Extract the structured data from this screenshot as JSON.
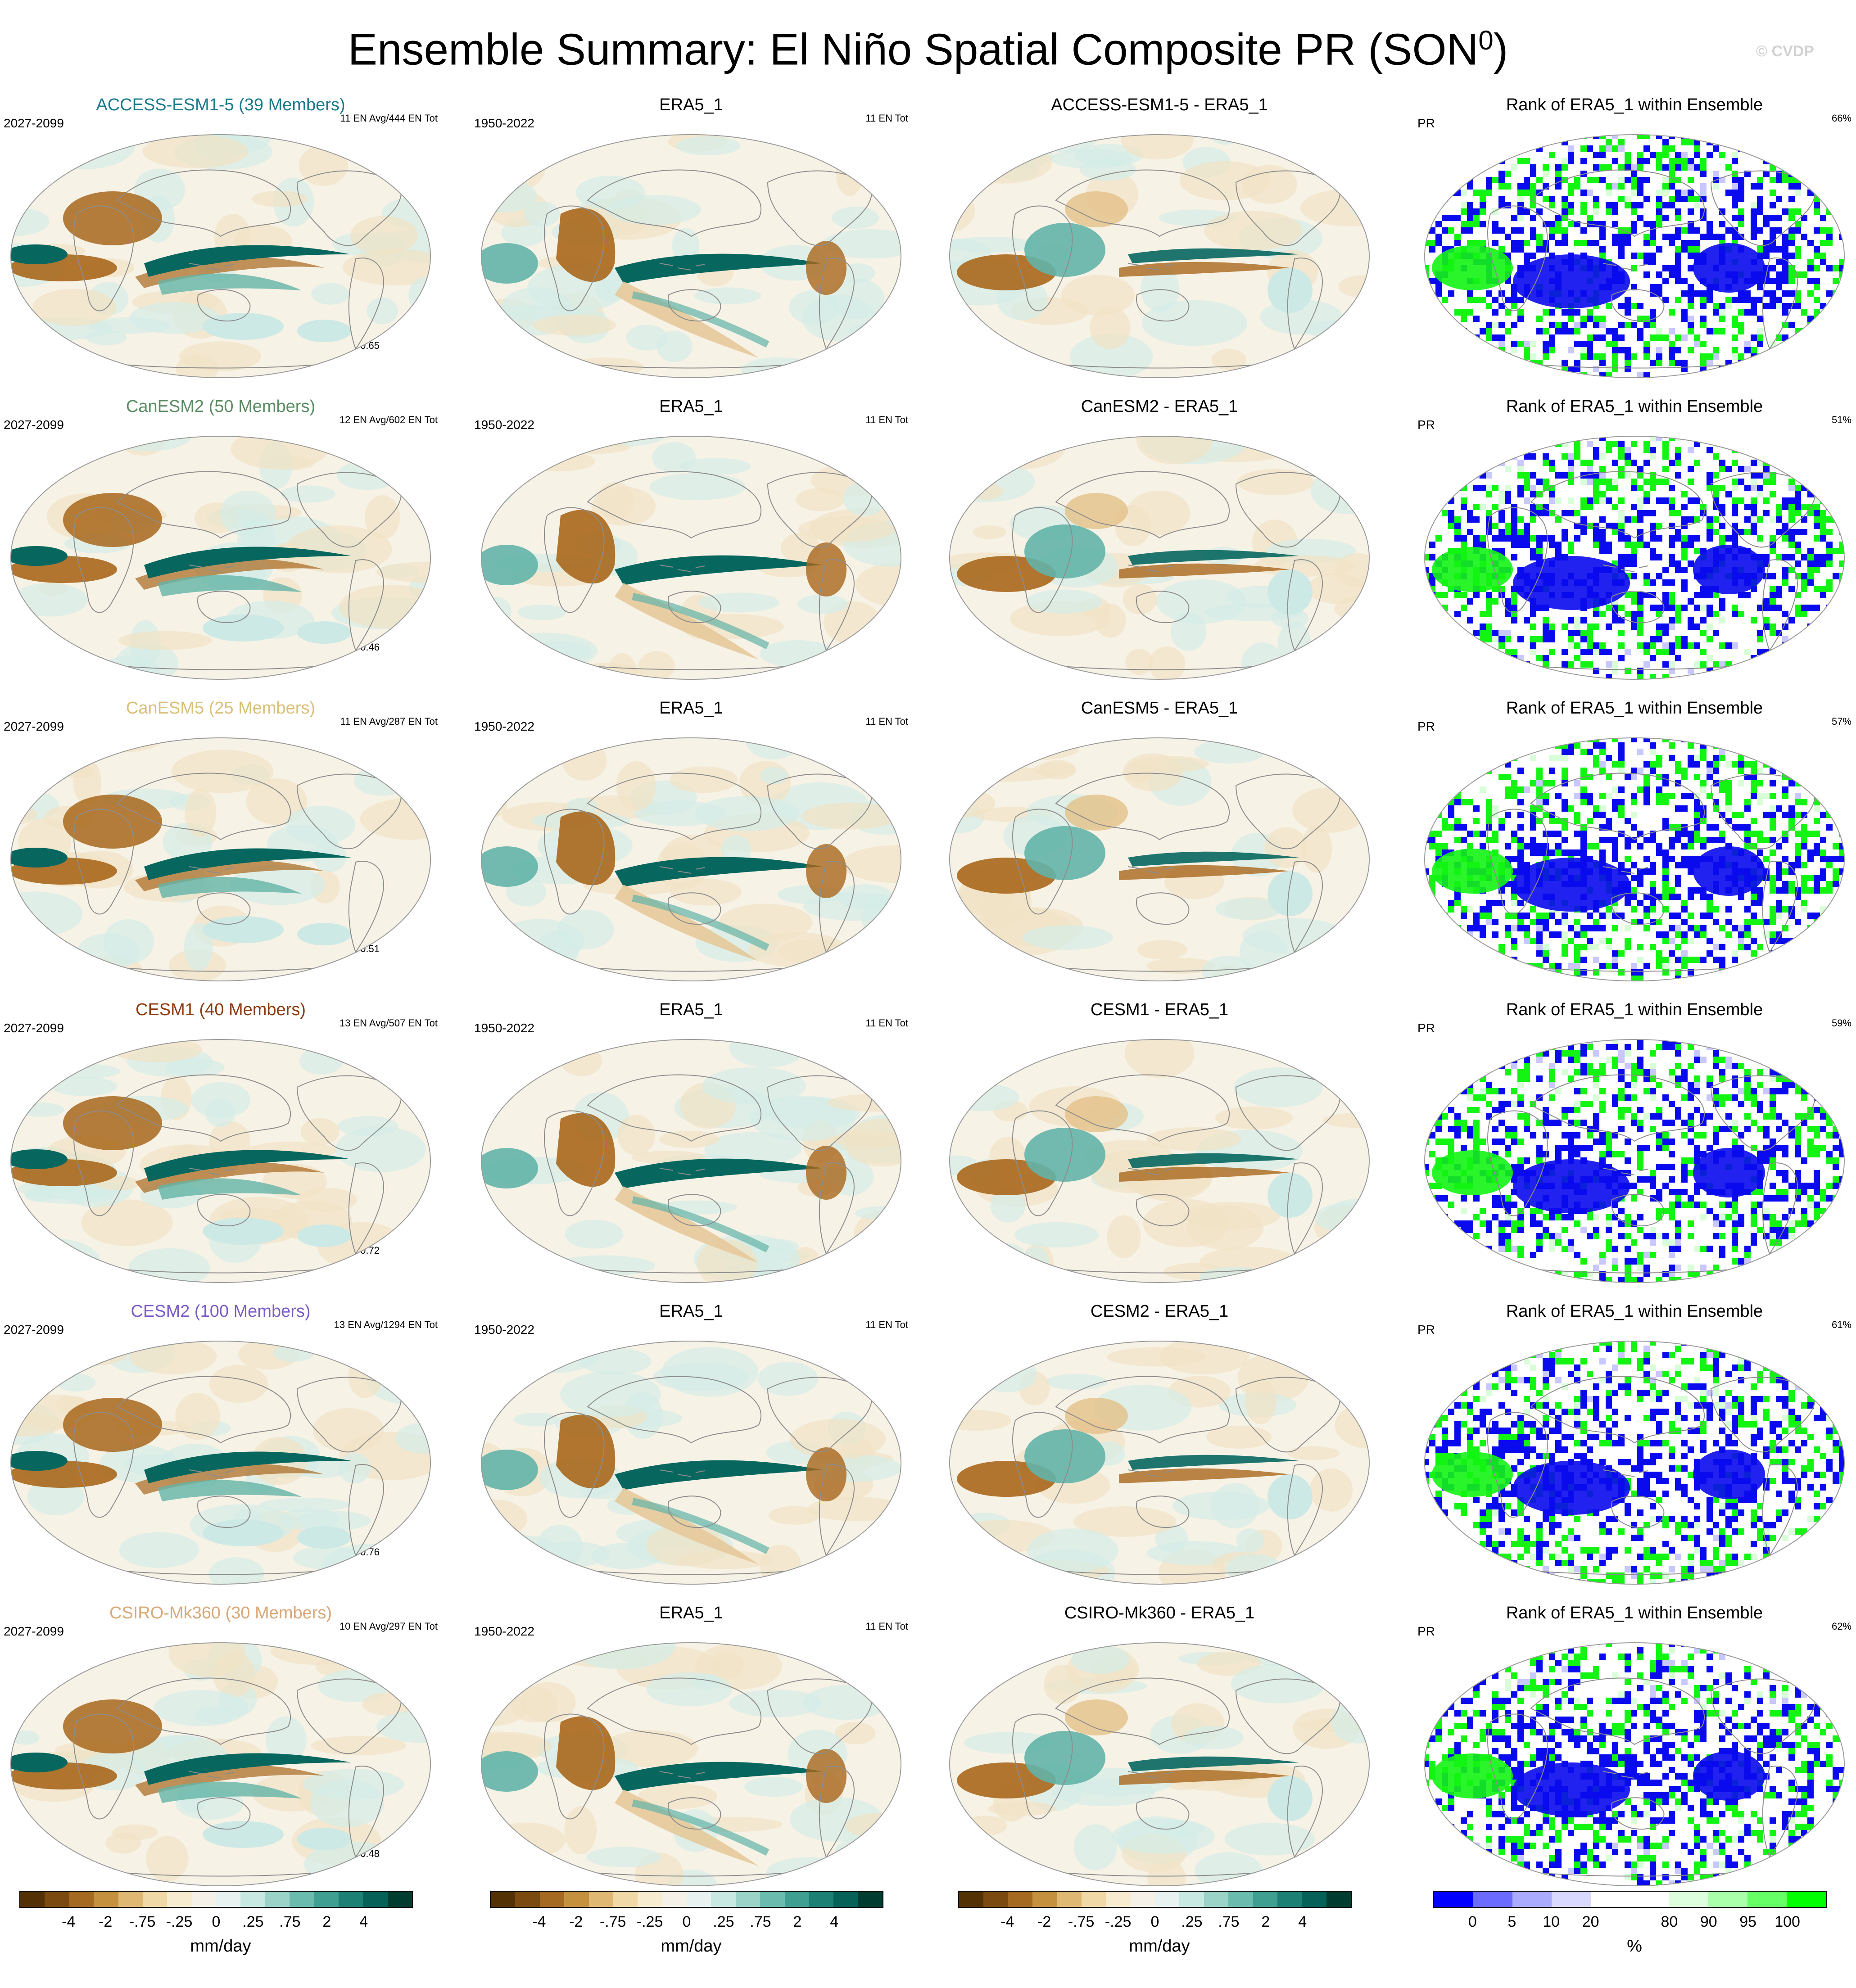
{
  "title": "Ensemble Summary: El Niño Spatial Composite PR (SON",
  "title_sup": "0",
  "title_close": ")",
  "watermark": "© CVDP",
  "colors": {
    "brown_dark": "#6b3c0b",
    "brown": "#a8671c",
    "tan": "#e3c187",
    "cream": "#f7f0df",
    "white": "#ffffff",
    "teal_light": "#cde9e5",
    "teal": "#63b4a8",
    "teal_dark": "#07675f",
    "rank_blue": "#0a0aee",
    "rank_green": "#13f413",
    "coast": "#8c8c8c"
  },
  "rows": [
    {
      "model": {
        "title": "ACCESS-ESM1-5 (39 Members)",
        "title_color": "#1a7a8c",
        "years": "2027-2099",
        "tag": "11 EN Avg/444 EN Tot",
        "corr": "r=0.65"
      },
      "obs": {
        "title": "ERA5_1",
        "years": "1950-2022",
        "tag": "11 EN Tot"
      },
      "diff": {
        "title": "ACCESS-ESM1-5 - ERA5_1"
      },
      "rank": {
        "title": "Rank of ERA5_1 within Ensemble",
        "var": "PR",
        "pct": "66%"
      }
    },
    {
      "model": {
        "title": "CanESM2 (50 Members)",
        "title_color": "#5a8c63",
        "years": "2027-2099",
        "tag": "12 EN Avg/602 EN Tot",
        "corr": "r=0.46"
      },
      "obs": {
        "title": "ERA5_1",
        "years": "1950-2022",
        "tag": "11 EN Tot"
      },
      "diff": {
        "title": "CanESM2 - ERA5_1"
      },
      "rank": {
        "title": "Rank of ERA5_1 within Ensemble",
        "var": "PR",
        "pct": "51%"
      }
    },
    {
      "model": {
        "title": "CanESM5 (25 Members)",
        "title_color": "#d9bf78",
        "years": "2027-2099",
        "tag": "11 EN Avg/287 EN Tot",
        "corr": "r=0.51"
      },
      "obs": {
        "title": "ERA5_1",
        "years": "1950-2022",
        "tag": "11 EN Tot"
      },
      "diff": {
        "title": "CanESM5 - ERA5_1"
      },
      "rank": {
        "title": "Rank of ERA5_1 within Ensemble",
        "var": "PR",
        "pct": "57%"
      }
    },
    {
      "model": {
        "title": "CESM1 (40 Members)",
        "title_color": "#8c3a10",
        "years": "2027-2099",
        "tag": "13 EN Avg/507 EN Tot",
        "corr": "r=0.72"
      },
      "obs": {
        "title": "ERA5_1",
        "years": "1950-2022",
        "tag": "11 EN Tot"
      },
      "diff": {
        "title": "CESM1 - ERA5_1"
      },
      "rank": {
        "title": "Rank of ERA5_1 within Ensemble",
        "var": "PR",
        "pct": "59%"
      }
    },
    {
      "model": {
        "title": "CESM2 (100 Members)",
        "title_color": "#7a5cc6",
        "years": "2027-2099",
        "tag": "13 EN Avg/1294 EN Tot",
        "corr": "r=0.76"
      },
      "obs": {
        "title": "ERA5_1",
        "years": "1950-2022",
        "tag": "11 EN Tot"
      },
      "diff": {
        "title": "CESM2 - ERA5_1"
      },
      "rank": {
        "title": "Rank of ERA5_1 within Ensemble",
        "var": "PR",
        "pct": "61%"
      }
    },
    {
      "model": {
        "title": "CSIRO-Mk360 (30 Members)",
        "title_color": "#d9a878",
        "years": "2027-2099",
        "tag": "10 EN Avg/297 EN Tot",
        "corr": "r=0.48"
      },
      "obs": {
        "title": "ERA5_1",
        "years": "1950-2022",
        "tag": "11 EN Tot"
      },
      "diff": {
        "title": "CSIRO-Mk360 - ERA5_1"
      },
      "rank": {
        "title": "Rank of ERA5_1 within Ensemble",
        "var": "PR",
        "pct": "62%"
      }
    }
  ],
  "colorbars": [
    {
      "unit": "mm/day",
      "colors": [
        "#543005",
        "#7a4a10",
        "#a46a22",
        "#c4913f",
        "#dfb874",
        "#f0d9a6",
        "#f7ebd0",
        "#f5f1e8",
        "#e8f3f1",
        "#c8e8e2",
        "#9bd3c9",
        "#6bbcaf",
        "#3f9f91",
        "#1d8074",
        "#066258",
        "#003c30"
      ],
      "labels": [
        "-4",
        "-2",
        "-.75",
        "-.25",
        "0",
        ".25",
        ".75",
        "2",
        "4"
      ]
    },
    {
      "unit": "mm/day",
      "colors": [
        "#543005",
        "#7a4a10",
        "#a46a22",
        "#c4913f",
        "#dfb874",
        "#f0d9a6",
        "#f7ebd0",
        "#f5f1e8",
        "#e8f3f1",
        "#c8e8e2",
        "#9bd3c9",
        "#6bbcaf",
        "#3f9f91",
        "#1d8074",
        "#066258",
        "#003c30"
      ],
      "labels": [
        "-4",
        "-2",
        "-.75",
        "-.25",
        "0",
        ".25",
        ".75",
        "2",
        "4"
      ]
    },
    {
      "unit": "mm/day",
      "colors": [
        "#543005",
        "#7a4a10",
        "#a46a22",
        "#c4913f",
        "#dfb874",
        "#f0d9a6",
        "#f7ebd0",
        "#f5f1e8",
        "#e8f3f1",
        "#c8e8e2",
        "#9bd3c9",
        "#6bbcaf",
        "#3f9f91",
        "#1d8074",
        "#066258",
        "#003c30"
      ],
      "labels": [
        "-4",
        "-2",
        "-.75",
        "-.25",
        "0",
        ".25",
        ".75",
        "2",
        "4"
      ]
    },
    {
      "unit": "%",
      "colors": [
        "#0000ff",
        "#6b6bff",
        "#aaaaff",
        "#d9d9ff",
        "#ffffff",
        "#ffffff",
        "#ddffdd",
        "#aaffaa",
        "#66ff66",
        "#00ff00"
      ],
      "labels": [
        "0",
        "5",
        "10",
        "20",
        "80",
        "90",
        "95",
        "100"
      ]
    }
  ]
}
